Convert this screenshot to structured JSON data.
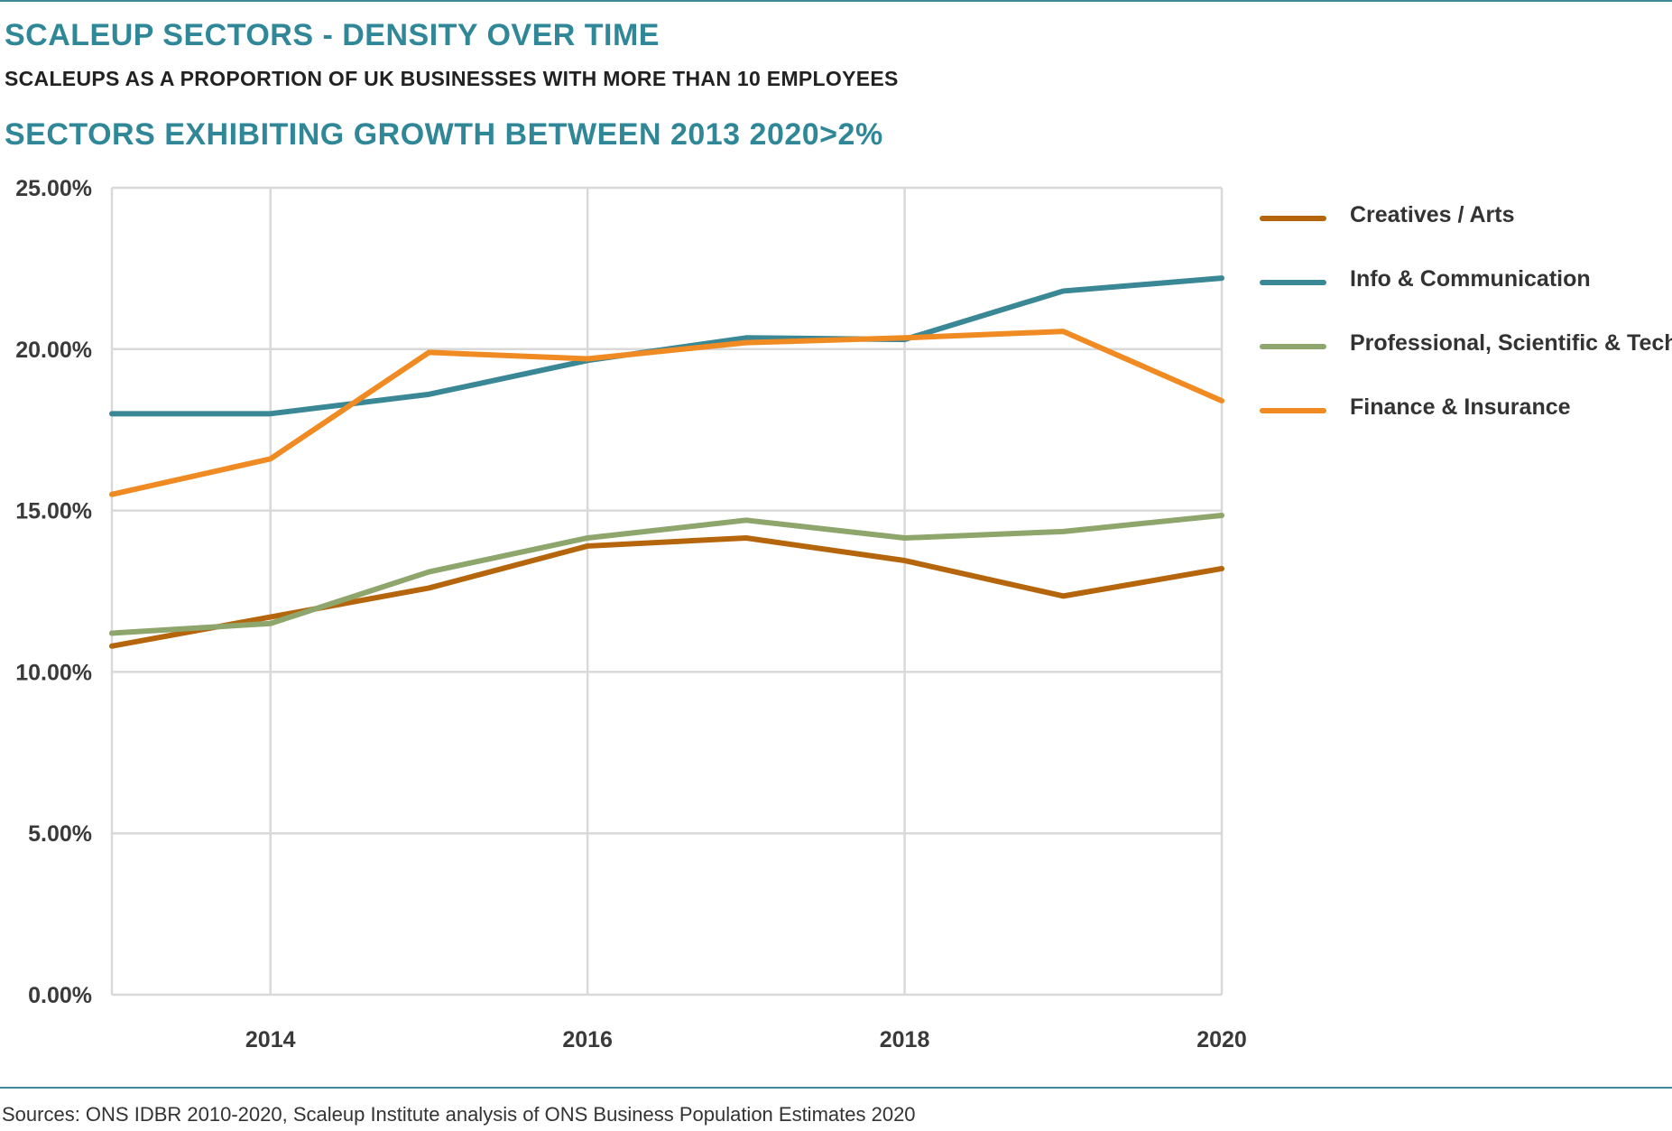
{
  "header": {
    "title": "SCALEUP SECTORS - DENSITY OVER TIME",
    "subtitle": "SCALEUPS AS A PROPORTION OF UK BUSINESSES WITH MORE THAN 10 EMPLOYEES",
    "subtitle2": "SECTORS EXHIBITING GROWTH BETWEEN 2013 2020>2%"
  },
  "footer": {
    "source": "Sources: ONS IDBR 2010-2020, Scaleup Institute analysis of ONS Business Population Estimates 2020"
  },
  "chart_data": {
    "type": "line",
    "title": "SECTORS EXHIBITING GROWTH BETWEEN 2013 2020>2%",
    "x": [
      2013,
      2014,
      2015,
      2016,
      2017,
      2018,
      2019,
      2020
    ],
    "xlim": [
      2013,
      2020
    ],
    "x_ticks": [
      2014,
      2016,
      2018,
      2020
    ],
    "x_tick_labels": [
      "2014",
      "2016",
      "2018",
      "2020"
    ],
    "ylim": [
      0,
      25
    ],
    "y_ticks": [
      0,
      5,
      10,
      15,
      20,
      25
    ],
    "y_tick_labels": [
      "0.00%",
      "5.00%",
      "10.00%",
      "15.00%",
      "20.00%",
      "25.00%"
    ],
    "grid": true,
    "legend_position": "right",
    "series": [
      {
        "name": "Creatives / Arts",
        "color": "#b5650c",
        "values": [
          10.8,
          11.7,
          12.6,
          13.9,
          14.15,
          13.45,
          12.35,
          13.2
        ]
      },
      {
        "name": "Info & Communication",
        "color": "#3a8795",
        "values": [
          18.0,
          18.0,
          18.6,
          19.65,
          20.35,
          20.3,
          21.8,
          22.2
        ]
      },
      {
        "name": "Professional, Scientific & Tech",
        "color": "#8ea66c",
        "values": [
          11.2,
          11.5,
          13.1,
          14.15,
          14.7,
          14.15,
          14.35,
          14.85
        ]
      },
      {
        "name": "Finance & Insurance",
        "color": "#f08a22",
        "values": [
          15.5,
          16.6,
          19.9,
          19.7,
          20.2,
          20.35,
          20.55,
          18.4
        ]
      }
    ]
  }
}
